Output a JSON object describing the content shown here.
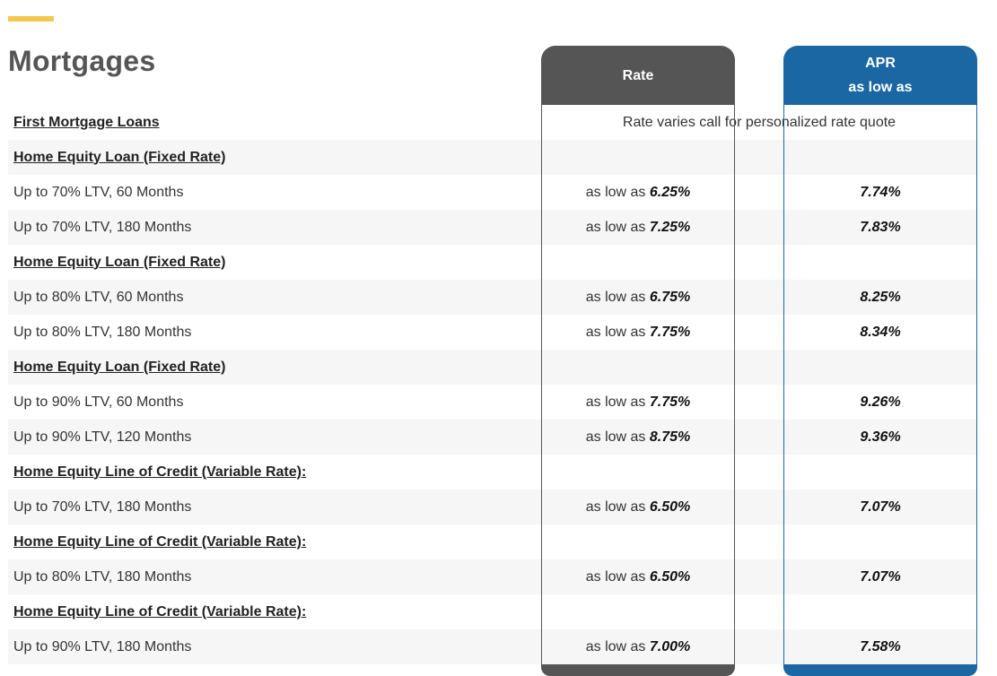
{
  "page": {
    "title": "Mortgages"
  },
  "columns": {
    "rate": "Rate",
    "apr_line1": "APR",
    "apr_line2": "as low as"
  },
  "colors": {
    "accent": "#f2c94c",
    "rate_header": "#555555",
    "apr_header": "#1a67a3"
  },
  "first_mortgage": {
    "label": "First Mortgage Loans",
    "note": "Rate varies call for personalized rate quote"
  },
  "rows": [
    {
      "type": "heading",
      "label": "Home Equity Loan (Fixed Rate)"
    },
    {
      "type": "item",
      "label": "Up to 70% LTV, 60 Months",
      "rate_prefix": "as low as",
      "rate": "6.25%",
      "apr": "7.74%"
    },
    {
      "type": "item",
      "label": "Up to 70% LTV, 180 Months",
      "rate_prefix": "as low as",
      "rate": "7.25%",
      "apr": "7.83%"
    },
    {
      "type": "heading",
      "label": "Home Equity Loan (Fixed Rate)"
    },
    {
      "type": "item",
      "label": "Up to 80% LTV, 60 Months",
      "rate_prefix": "as low as",
      "rate": "6.75%",
      "apr": "8.25%"
    },
    {
      "type": "item",
      "label": "Up to 80% LTV, 180 Months",
      "rate_prefix": "as low as",
      "rate": "7.75%",
      "apr": "8.34%"
    },
    {
      "type": "heading",
      "label": "Home Equity Loan (Fixed Rate)"
    },
    {
      "type": "item",
      "label": "Up to 90% LTV, 60 Months",
      "rate_prefix": "as low as",
      "rate": "7.75%",
      "apr": "9.26%"
    },
    {
      "type": "item",
      "label": "Up to 90% LTV, 120 Months",
      "rate_prefix": "as low as",
      "rate": "8.75%",
      "apr": "9.36%"
    },
    {
      "type": "heading",
      "label": "Home Equity Line of Credit (Variable Rate):"
    },
    {
      "type": "item",
      "label": "Up to 70% LTV, 180 Months",
      "rate_prefix": "as low as",
      "rate": "6.50%",
      "apr": "7.07%"
    },
    {
      "type": "heading",
      "label": "Home Equity Line of Credit (Variable Rate):"
    },
    {
      "type": "item",
      "label": "Up to 80% LTV, 180 Months",
      "rate_prefix": "as low as",
      "rate": "6.50%",
      "apr": "7.07%"
    },
    {
      "type": "heading",
      "label": "Home Equity Line of Credit (Variable Rate):"
    },
    {
      "type": "item",
      "label": "Up to 90% LTV, 180 Months",
      "rate_prefix": "as low as",
      "rate": "7.00%",
      "apr": "7.58%"
    }
  ]
}
